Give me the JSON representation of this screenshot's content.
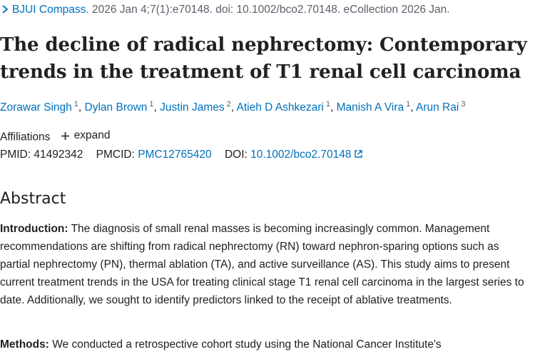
{
  "journal": {
    "name": "BJUI Compass",
    "citation": ". 2026 Jan 4;7(1):e70148. doi: 10.1002/bco2.70148. eCollection 2026 Jan."
  },
  "article": {
    "title": "The decline of radical nephrectomy: Contemporary trends in the treatment of T1 renal cell carcinoma"
  },
  "authors": [
    {
      "name": "Zorawar Singh",
      "aff": "1"
    },
    {
      "name": "Dylan Brown",
      "aff": "1"
    },
    {
      "name": "Justin James",
      "aff": "2"
    },
    {
      "name": "Atieh D Ashkezari",
      "aff": "1"
    },
    {
      "name": "Manish A Vira",
      "aff": "1"
    },
    {
      "name": "Arun Rai",
      "aff": "3"
    }
  ],
  "affiliations": {
    "label": "Affiliations",
    "expand_label": "expand"
  },
  "ids": {
    "pmid_label": "PMID:",
    "pmid": "41492342",
    "pmcid_label": "PMCID:",
    "pmcid": "PMC12765420",
    "doi_label": "DOI:",
    "doi": "10.1002/bco2.70148"
  },
  "abstract": {
    "heading": "Abstract",
    "intro_label": "Introduction:",
    "intro_text": " The diagnosis of small renal masses is becoming increasingly common. Management recommendations are shifting from radical nephrectomy (RN) toward nephron-sparing options such as partial nephrectomy (PN), thermal ablation (TA), and active surveillance (AS). This study aims to present current treatment trends in the USA for treating clinical stage T1 renal cell carcinoma in the largest series to date. Additionally, we sought to identify predictors linked to the receipt of ablative treatments.",
    "methods_label": "Methods:",
    "methods_text": " We conducted a retrospective cohort study using the National Cancer Institute's"
  },
  "colors": {
    "link": "#0071bc",
    "text": "#212121",
    "muted": "#5b616b"
  }
}
